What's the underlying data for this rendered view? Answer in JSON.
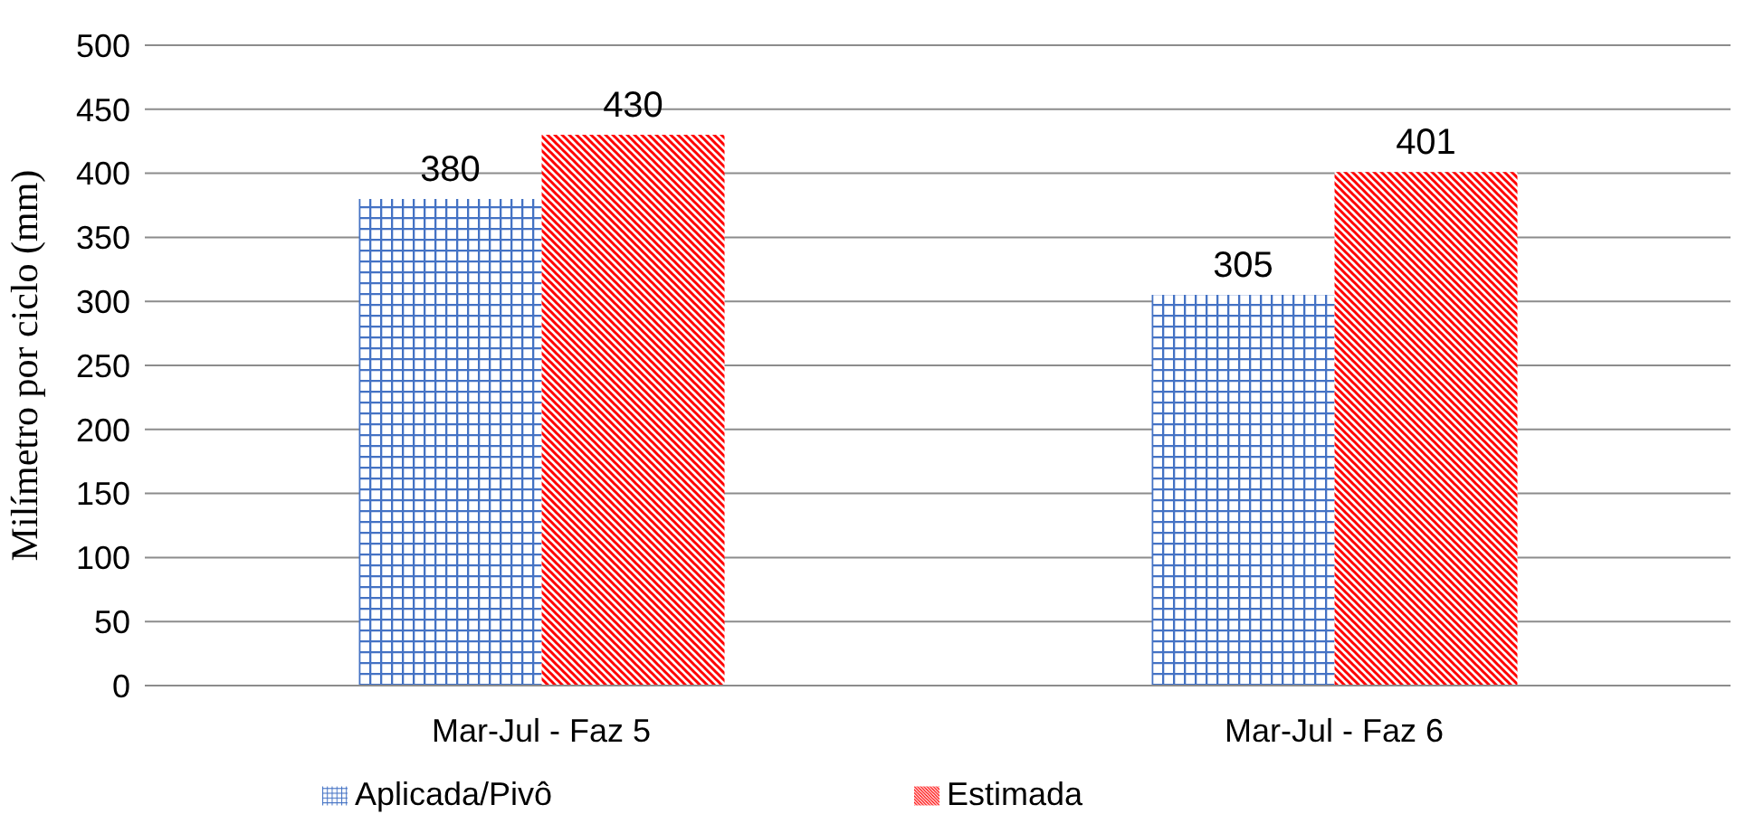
{
  "chart_data": {
    "type": "bar",
    "ylabel": "Milímetro por ciclo (mm)",
    "categories": [
      "Mar-Jul - Faz 5",
      "Mar-Jul - Faz 6"
    ],
    "series": [
      {
        "name": "Aplicada/Pivô",
        "color": "#4472c4",
        "values": [
          380,
          305
        ]
      },
      {
        "name": "Estimada",
        "color": "#ff0000",
        "values": [
          430,
          401
        ]
      }
    ],
    "ylim": [
      0,
      500
    ],
    "yticks": [
      0,
      50,
      100,
      150,
      200,
      250,
      300,
      350,
      400,
      450,
      500
    ],
    "grid": "y",
    "legend": "bottom",
    "data_labels": true
  }
}
